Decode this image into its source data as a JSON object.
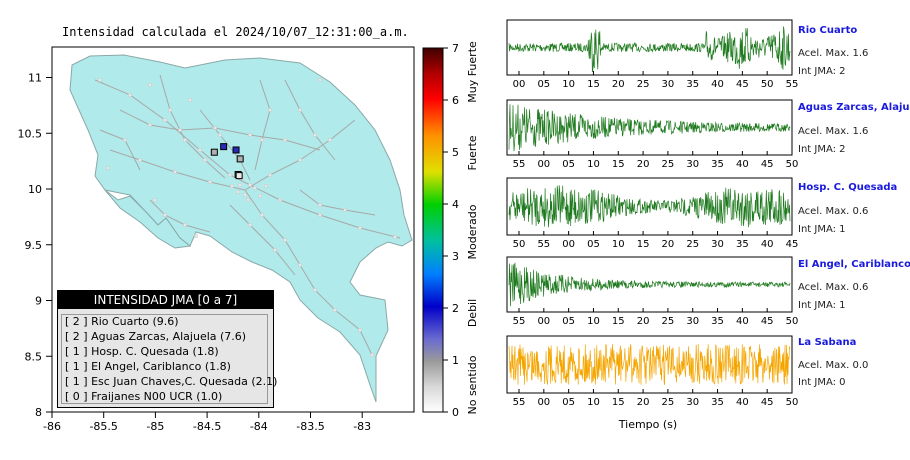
{
  "map": {
    "title": "Intensidad calculada el 2024/10/07_12:31:00_a.m.",
    "lon_ticks": [
      "-86",
      "-85.5",
      "-85",
      "-84.5",
      "-84",
      "-83.5",
      "-83"
    ],
    "lat_ticks": [
      "11",
      "10.5",
      "10",
      "9.5",
      "9",
      "8.5",
      "8"
    ],
    "land_color": "#b0eaea",
    "road_color": "#a8a8a8"
  },
  "colorbar": {
    "ticks": [
      "0",
      "1",
      "2",
      "3",
      "4",
      "5",
      "6",
      "7"
    ],
    "labels": [
      "No sentido",
      "Debil",
      "Moderado",
      "Fuerte",
      "Muy Fuerte"
    ]
  },
  "legend": {
    "title": "INTENSIDAD JMA [0 a 7]",
    "rows": [
      "[ 2 ] Rio Cuarto (9.6)",
      "[ 2 ] Aguas Zarcas, Alajuela (7.6)",
      "[ 1 ] Hosp. C. Quesada (1.8)",
      "[ 1 ] El Angel, Cariblanco (1.8)",
      "[ 1 ] Esc Juan Chaves,C. Quesada (2.1)",
      "[ 0 ] Fraijanes N00 UCR (1.0)"
    ]
  },
  "traces": {
    "xlabel": "Tiempo (s)",
    "panels": [
      {
        "station": "Rio Cuarto",
        "acel": "Acel. Max. 1.6",
        "jma": "Int JMA: 2",
        "color": "#1e7a1e",
        "ticks": [
          "00",
          "05",
          "10",
          "15",
          "20",
          "25",
          "30",
          "35",
          "40",
          "45",
          "50",
          "55"
        ]
      },
      {
        "station": "Aguas Zarcas, Alajuela",
        "acel": "Acel. Max. 1.6",
        "jma": "Int JMA: 2",
        "color": "#1e7a1e",
        "ticks": [
          "55",
          "00",
          "05",
          "10",
          "15",
          "20",
          "25",
          "30",
          "35",
          "40",
          "45",
          "50"
        ]
      },
      {
        "station": "Hosp. C. Quesada",
        "acel": "Acel. Max. 0.6",
        "jma": "Int JMA: 1",
        "color": "#1e7a1e",
        "ticks": [
          "50",
          "55",
          "00",
          "05",
          "10",
          "15",
          "20",
          "25",
          "30",
          "35",
          "40",
          "45"
        ]
      },
      {
        "station": "El Angel, Cariblanco",
        "acel": "Acel. Max. 0.6",
        "jma": "Int JMA: 1",
        "color": "#1e7a1e",
        "ticks": [
          "55",
          "00",
          "05",
          "10",
          "15",
          "20",
          "25",
          "30",
          "35",
          "40",
          "45",
          "50"
        ]
      },
      {
        "station": "La Sabana",
        "acel": "Acel. Max. 0.0",
        "jma": "Int JMA: 0",
        "color": "#f5a500",
        "ticks": [
          "55",
          "00",
          "05",
          "10",
          "15",
          "20",
          "25",
          "30",
          "35",
          "40",
          "45",
          "50"
        ]
      }
    ]
  },
  "chart_data": [
    {
      "type": "map",
      "title": "Intensidad calculada el 2024/10/07_12:31:00_a.m.",
      "xlim": [
        -86,
        -82.5
      ],
      "ylim": [
        8,
        11.3
      ],
      "stations": [
        {
          "name": "Rio Cuarto",
          "lon": -84.22,
          "lat": 10.35,
          "jma": 2
        },
        {
          "name": "Aguas Zarcas, Alajuela",
          "lon": -84.34,
          "lat": 10.38,
          "jma": 2
        },
        {
          "name": "Hosp. C. Quesada",
          "lon": -84.43,
          "lat": 10.33,
          "jma": 1
        },
        {
          "name": "El Angel, Cariblanco",
          "lon": -84.18,
          "lat": 10.27,
          "jma": 1
        },
        {
          "name": "Esc Juan Chaves,C. Quesada",
          "lon": -84.2,
          "lat": 10.13,
          "jma": 1
        },
        {
          "name": "Fraijanes N00 UCR",
          "lon": -84.19,
          "lat": 10.12,
          "jma": 0
        }
      ]
    },
    {
      "type": "line",
      "xlabel": "Tiempo (s)",
      "series": [
        {
          "name": "Rio Cuarto",
          "peak_acel": 1.6,
          "jma": 2
        },
        {
          "name": "Aguas Zarcas, Alajuela",
          "peak_acel": 1.6,
          "jma": 2
        },
        {
          "name": "Hosp. C. Quesada",
          "peak_acel": 0.6,
          "jma": 1
        },
        {
          "name": "El Angel, Cariblanco",
          "peak_acel": 0.6,
          "jma": 1
        },
        {
          "name": "La Sabana",
          "peak_acel": 0.0,
          "jma": 0
        }
      ]
    }
  ]
}
